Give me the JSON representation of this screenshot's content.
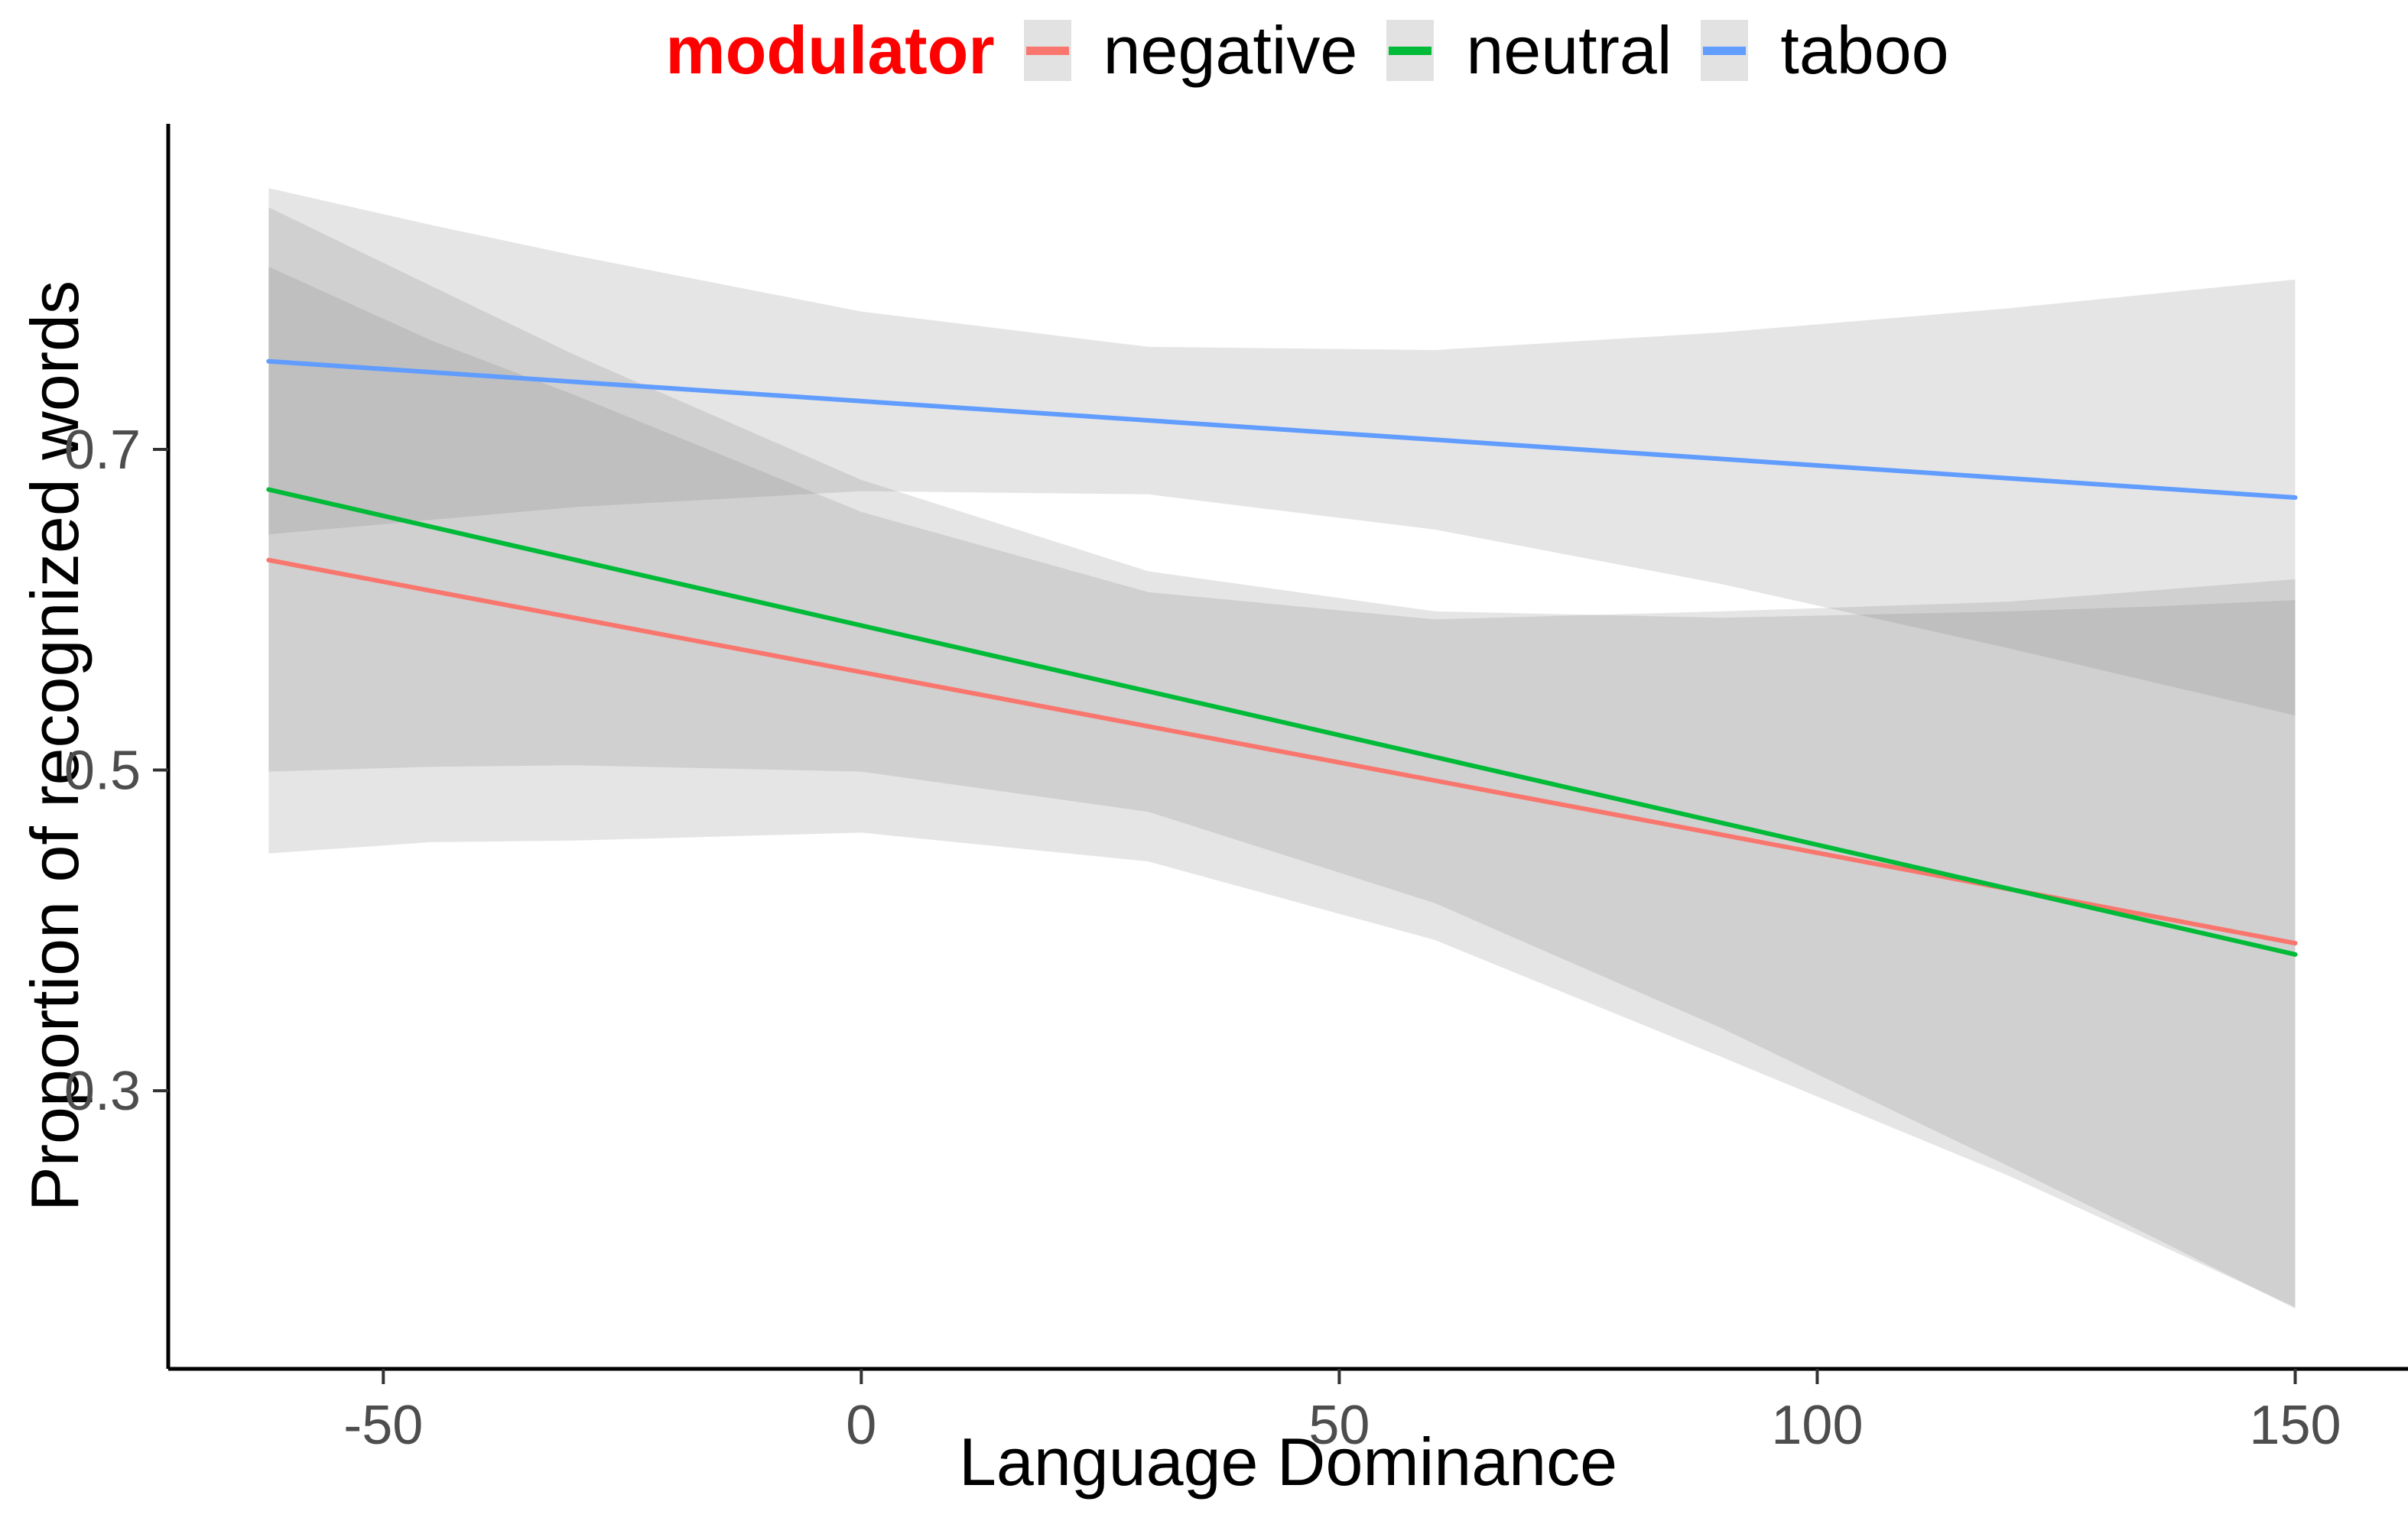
{
  "legend": {
    "title": "modulator",
    "title_color": "#FF0000",
    "key_fill": "#E2E2E2",
    "items": [
      {
        "label": "negative",
        "color": "#F8766D"
      },
      {
        "label": "neutral",
        "color": "#00BA38"
      },
      {
        "label": "taboo",
        "color": "#619CFF"
      }
    ]
  },
  "axes": {
    "x": {
      "title": "Language Dominance",
      "ticks": [
        -50,
        0,
        50,
        100,
        150
      ],
      "tick_labels": [
        "-50",
        "0",
        "50",
        "100",
        "150"
      ],
      "range": [
        -72.5,
        161.8
      ]
    },
    "y": {
      "title": "Proportion of recognized words",
      "ticks": [
        0.7,
        0.5,
        0.3
      ],
      "tick_labels": [
        "0.7",
        "0.5",
        "0.3"
      ],
      "range": [
        0.1265,
        0.9031
      ]
    },
    "axis_line_color": "#000000",
    "tick_color": "#333333",
    "tick_label_color": "#4D4D4D"
  },
  "chart_data": {
    "type": "line",
    "title": "",
    "xlabel": "Language Dominance",
    "ylabel": "Proportion of recognized words",
    "xlim": [
      -62,
      150
    ],
    "ylim": [
      0.1265,
      0.9031
    ],
    "grid": false,
    "legend_position": "top",
    "band_color": "#7F7F7F",
    "band_opacity": 0.2,
    "series": [
      {
        "name": "negative",
        "color": "#F8766D",
        "x": [
          -62,
          150
        ],
        "y": [
          0.631,
          0.392
        ],
        "band": {
          "x": [
            -62,
            -45,
            -30,
            0,
            30,
            60,
            90,
            120,
            135,
            150
          ],
          "upper": [
            0.814,
            0.768,
            0.734,
            0.661,
            0.611,
            0.594,
            0.599,
            0.605,
            0.612,
            0.619
          ],
          "lower": [
            0.448,
            0.455,
            0.456,
            0.461,
            0.443,
            0.394,
            0.321,
            0.247,
            0.206,
            0.165
          ]
        }
      },
      {
        "name": "neutral",
        "color": "#00BA38",
        "x": [
          -62,
          150
        ],
        "y": [
          0.675,
          0.385
        ],
        "band": {
          "x": [
            -62,
            -45,
            -30,
            0,
            30,
            60,
            90,
            120,
            135,
            150
          ],
          "upper": [
            0.851,
            0.802,
            0.759,
            0.681,
            0.624,
            0.599,
            0.595,
            0.599,
            0.602,
            0.606
          ],
          "lower": [
            0.499,
            0.502,
            0.503,
            0.499,
            0.474,
            0.417,
            0.339,
            0.253,
            0.209,
            0.164
          ]
        }
      },
      {
        "name": "taboo",
        "color": "#619CFF",
        "x": [
          -62,
          150
        ],
        "y": [
          0.755,
          0.67
        ],
        "band": {
          "x": [
            -62,
            -45,
            -30,
            0,
            30,
            60,
            90,
            120,
            135,
            150
          ],
          "upper": [
            0.863,
            0.84,
            0.821,
            0.786,
            0.764,
            0.762,
            0.773,
            0.788,
            0.797,
            0.806
          ],
          "lower": [
            0.647,
            0.656,
            0.664,
            0.674,
            0.672,
            0.65,
            0.616,
            0.576,
            0.555,
            0.534
          ]
        }
      }
    ]
  }
}
